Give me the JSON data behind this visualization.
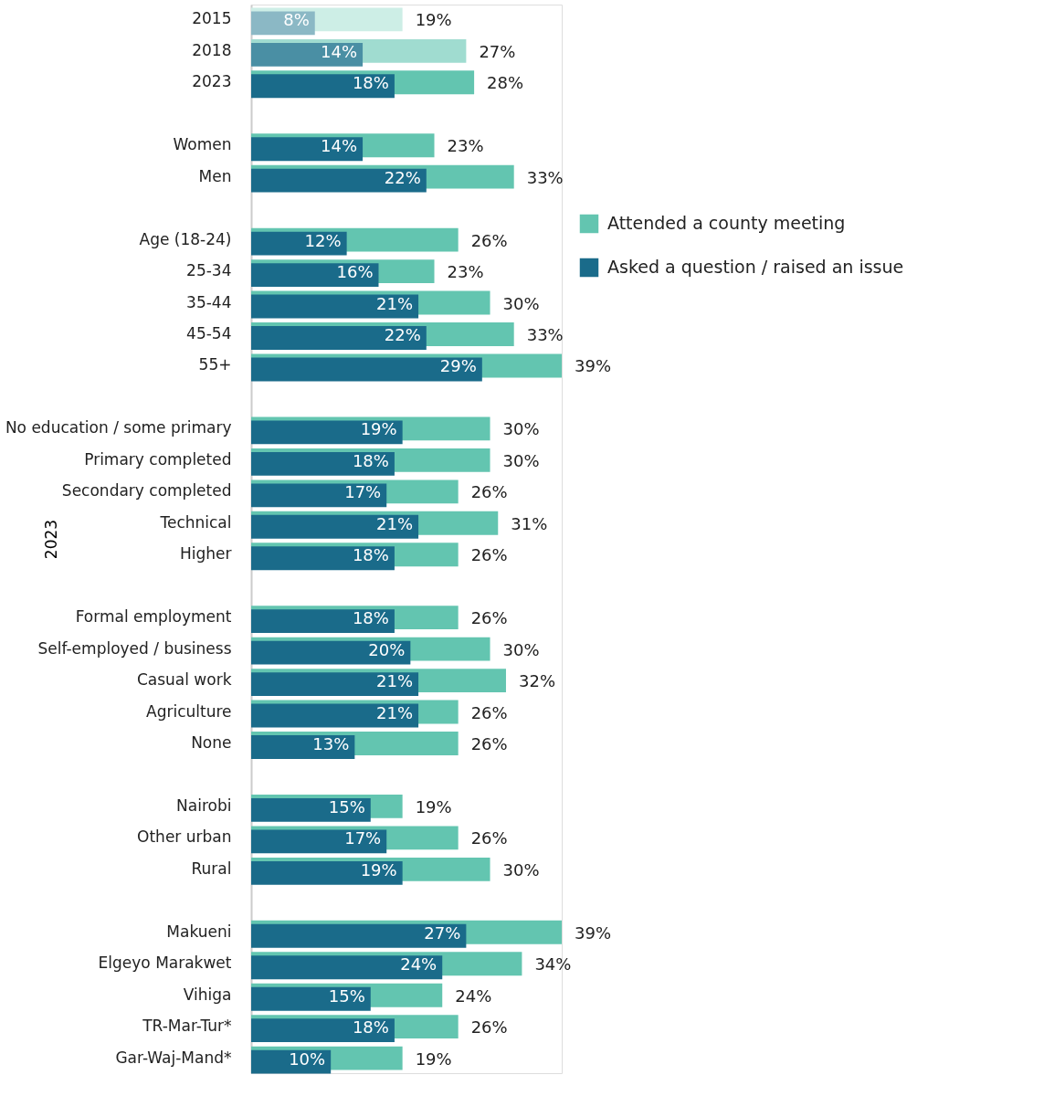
{
  "chart_data": {
    "type": "bar",
    "orientation": "horizontal",
    "ylabel": "2023",
    "legend": "top right",
    "categories": [
      "2015",
      "2018",
      "2023",
      null,
      "Women",
      "Men",
      null,
      "Age (18-24)",
      "25-34",
      "35-44",
      "45-54",
      "55+",
      null,
      "No education / some primary",
      "Primary completed",
      "Secondary completed",
      "Technical",
      "Higher",
      null,
      "Formal employment",
      "Self-employed / business",
      "Casual work",
      "Agriculture",
      "None",
      null,
      "Nairobi",
      "Other urban",
      "Rural",
      null,
      "Makueni",
      "Elgeyo Marakwet",
      "Vihiga",
      "TR-Mar-Tur*",
      "Gar-Waj-Mand*"
    ],
    "series": [
      {
        "name": "Attended a county meeting",
        "color": "#63c5b0",
        "colors": [
          "#cdeee6",
          "#a0dcd0",
          "#63c5b0",
          null,
          "#63c5b0",
          "#63c5b0",
          null,
          "#63c5b0",
          "#63c5b0",
          "#63c5b0",
          "#63c5b0",
          "#63c5b0",
          null,
          "#63c5b0",
          "#63c5b0",
          "#63c5b0",
          "#63c5b0",
          "#63c5b0",
          null,
          "#63c5b0",
          "#63c5b0",
          "#63c5b0",
          "#63c5b0",
          "#63c5b0",
          null,
          "#63c5b0",
          "#63c5b0",
          "#63c5b0",
          null,
          "#63c5b0",
          "#63c5b0",
          "#63c5b0",
          "#63c5b0",
          "#63c5b0"
        ],
        "values": [
          19,
          27,
          28,
          null,
          23,
          33,
          null,
          26,
          23,
          30,
          33,
          39,
          null,
          30,
          30,
          26,
          31,
          26,
          null,
          26,
          30,
          32,
          26,
          26,
          null,
          19,
          26,
          30,
          null,
          39,
          34,
          24,
          26,
          19
        ],
        "value_labels": [
          "19%",
          "27%",
          "28%",
          null,
          "23%",
          "33%",
          null,
          "26%",
          "23%",
          "30%",
          "33%",
          "39%",
          null,
          "30%",
          "30%",
          "26%",
          "31%",
          "26%",
          null,
          "26%",
          "30%",
          "32%",
          "26%",
          "26%",
          null,
          "19%",
          "26%",
          "30%",
          null,
          "39%",
          "34%",
          "24%",
          "26%",
          "19%"
        ]
      },
      {
        "name": "Asked a question / raised an issue",
        "color": "#1a6b8a",
        "colors": [
          "#8bb8c5",
          "#4a8fa4",
          "#1a6b8a",
          null,
          "#1a6b8a",
          "#1a6b8a",
          null,
          "#1a6b8a",
          "#1a6b8a",
          "#1a6b8a",
          "#1a6b8a",
          "#1a6b8a",
          null,
          "#1a6b8a",
          "#1a6b8a",
          "#1a6b8a",
          "#1a6b8a",
          "#1a6b8a",
          null,
          "#1a6b8a",
          "#1a6b8a",
          "#1a6b8a",
          "#1a6b8a",
          "#1a6b8a",
          null,
          "#1a6b8a",
          "#1a6b8a",
          "#1a6b8a",
          null,
          "#1a6b8a",
          "#1a6b8a",
          "#1a6b8a",
          "#1a6b8a",
          "#1a6b8a"
        ],
        "values": [
          8,
          14,
          18,
          null,
          14,
          22,
          null,
          12,
          16,
          21,
          22,
          29,
          null,
          19,
          18,
          17,
          21,
          18,
          null,
          18,
          20,
          21,
          21,
          13,
          null,
          15,
          17,
          19,
          null,
          27,
          24,
          15,
          18,
          10
        ],
        "value_labels": [
          "8%",
          "14%",
          "18%",
          null,
          "14%",
          "22%",
          null,
          "12%",
          "16%",
          "21%",
          "22%",
          "29%",
          null,
          "19%",
          "18%",
          "17%",
          "21%",
          "18%",
          null,
          "18%",
          "20%",
          "21%",
          "21%",
          "13%",
          null,
          "15%",
          "17%",
          "19%",
          null,
          "27%",
          "24%",
          "15%",
          "18%",
          "10%"
        ]
      }
    ]
  }
}
